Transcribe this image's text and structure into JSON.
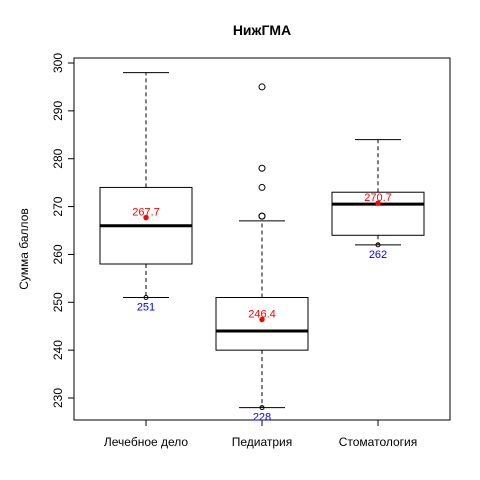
{
  "chart_data": {
    "type": "box",
    "title": "НижГМА",
    "xlabel": "",
    "ylabel": "Сумма баллов",
    "ylim": [
      225,
      301
    ],
    "yticks": [
      230,
      240,
      250,
      260,
      270,
      280,
      290,
      300
    ],
    "grid": false,
    "categories": [
      "Лечебное дело",
      "Педиатрия",
      "Стоматология"
    ],
    "boxes": [
      {
        "category": "Лечебное дело",
        "whisker_low": 251,
        "q1": 258,
        "median": 266,
        "q3": 274,
        "whisker_high": 298,
        "outliers": [],
        "mean": 267.7,
        "mean_label": "267.7",
        "min": 251,
        "min_label": "251"
      },
      {
        "category": "Педиатрия",
        "whisker_low": 228,
        "q1": 240,
        "median": 244,
        "q3": 251,
        "whisker_high": 267,
        "outliers": [
          268,
          268,
          274,
          278,
          295
        ],
        "mean": 246.4,
        "mean_label": "246.4",
        "min": 228,
        "min_label": "228"
      },
      {
        "category": "Стоматология",
        "whisker_low": 262,
        "q1": 264,
        "median": 270.5,
        "q3": 273,
        "whisker_high": 284,
        "outliers": [],
        "mean": 270.7,
        "mean_label": "270.7",
        "min": 262,
        "min_label": "262"
      }
    ],
    "colors": {
      "mean": "#ff0000",
      "min": "#0000ff",
      "box": "#000000"
    }
  }
}
